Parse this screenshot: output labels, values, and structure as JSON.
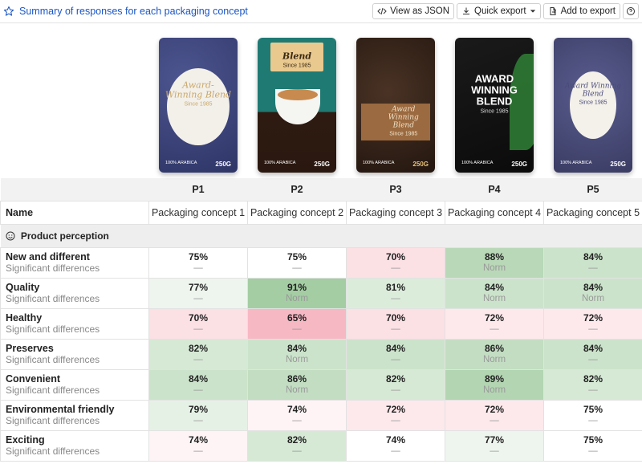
{
  "header": {
    "title": "Summary of responses for each packaging concept",
    "toolbar": {
      "view_json": "View as JSON",
      "quick_export": "Quick export",
      "add_to_export": "Add to export"
    }
  },
  "packs": [
    {
      "big": "Award-Winning Blend",
      "since": "Since 1985",
      "fine": "100% ARABICA",
      "weight": "250G"
    },
    {
      "big": "Blend",
      "since": "Since 1985",
      "fine": "100% ARABICA",
      "weight": "250G"
    },
    {
      "big": "Award Winning Blend",
      "since": "Since 1985",
      "fine": "100% ARABICA",
      "weight": "250G"
    },
    {
      "big": "AWARD WINNING BLEND",
      "since": "Since 1985",
      "fine": "100% ARABICA",
      "weight": "250G"
    },
    {
      "big": "Award Winning Blend",
      "since": "Since 1985",
      "fine": "100% ARABICA",
      "weight": "250G"
    }
  ],
  "columns": [
    "P1",
    "P2",
    "P3",
    "P4",
    "P5"
  ],
  "name_row": {
    "label": "Name",
    "values": [
      "Packaging concept 1",
      "Packaging concept 2",
      "Packaging concept 3",
      "Packaging concept 4",
      "Packaging concept 5"
    ]
  },
  "section": {
    "label": "Product perception"
  },
  "sub_label": "Significant differences",
  "rows": [
    {
      "name": "New and different",
      "cells": [
        {
          "v": "75%",
          "s": "—",
          "bg": "#ffffff"
        },
        {
          "v": "75%",
          "s": "—",
          "bg": "#ffffff"
        },
        {
          "v": "70%",
          "s": "—",
          "bg": "#fbe0e4"
        },
        {
          "v": "88%",
          "s": "Norm",
          "bg": "#b9d8b8"
        },
        {
          "v": "84%",
          "s": "—",
          "bg": "#cce3cb"
        }
      ]
    },
    {
      "name": "Quality",
      "cells": [
        {
          "v": "77%",
          "s": "—",
          "bg": "#eef5ee"
        },
        {
          "v": "91%",
          "s": "Norm",
          "bg": "#a4cda3"
        },
        {
          "v": "81%",
          "s": "—",
          "bg": "#dcecdb"
        },
        {
          "v": "84%",
          "s": "Norm",
          "bg": "#cce3cb"
        },
        {
          "v": "84%",
          "s": "Norm",
          "bg": "#cce3cb"
        }
      ]
    },
    {
      "name": "Healthy",
      "cells": [
        {
          "v": "70%",
          "s": "—",
          "bg": "#fbe0e4"
        },
        {
          "v": "65%",
          "s": "—",
          "bg": "#f6b8c3"
        },
        {
          "v": "70%",
          "s": "—",
          "bg": "#fbe0e4"
        },
        {
          "v": "72%",
          "s": "—",
          "bg": "#fde9ec"
        },
        {
          "v": "72%",
          "s": "—",
          "bg": "#fde9ec"
        }
      ]
    },
    {
      "name": "Preserves",
      "cells": [
        {
          "v": "82%",
          "s": "—",
          "bg": "#d6e9d5"
        },
        {
          "v": "84%",
          "s": "Norm",
          "bg": "#cce3cb"
        },
        {
          "v": "84%",
          "s": "—",
          "bg": "#cce3cb"
        },
        {
          "v": "86%",
          "s": "Norm",
          "bg": "#c3ddc2"
        },
        {
          "v": "84%",
          "s": "—",
          "bg": "#cce3cb"
        }
      ]
    },
    {
      "name": "Convenient",
      "cells": [
        {
          "v": "84%",
          "s": "—",
          "bg": "#cce3cb"
        },
        {
          "v": "86%",
          "s": "Norm",
          "bg": "#c3ddc2"
        },
        {
          "v": "82%",
          "s": "—",
          "bg": "#d6e9d5"
        },
        {
          "v": "89%",
          "s": "Norm",
          "bg": "#b3d5b2"
        },
        {
          "v": "82%",
          "s": "—",
          "bg": "#d6e9d5"
        }
      ]
    },
    {
      "name": "Environmental friendly",
      "cells": [
        {
          "v": "79%",
          "s": "—",
          "bg": "#e6f1e5"
        },
        {
          "v": "74%",
          "s": "—",
          "bg": "#fef4f5"
        },
        {
          "v": "72%",
          "s": "—",
          "bg": "#fde9ec"
        },
        {
          "v": "72%",
          "s": "—",
          "bg": "#fde9ec"
        },
        {
          "v": "75%",
          "s": "—",
          "bg": "#ffffff"
        }
      ]
    },
    {
      "name": "Exciting",
      "cells": [
        {
          "v": "74%",
          "s": "—",
          "bg": "#fef4f5"
        },
        {
          "v": "82%",
          "s": "—",
          "bg": "#d6e9d5"
        },
        {
          "v": "74%",
          "s": "—",
          "bg": "#ffffff"
        },
        {
          "v": "77%",
          "s": "—",
          "bg": "#eef5ee"
        },
        {
          "v": "75%",
          "s": "—",
          "bg": "#ffffff"
        }
      ]
    }
  ]
}
